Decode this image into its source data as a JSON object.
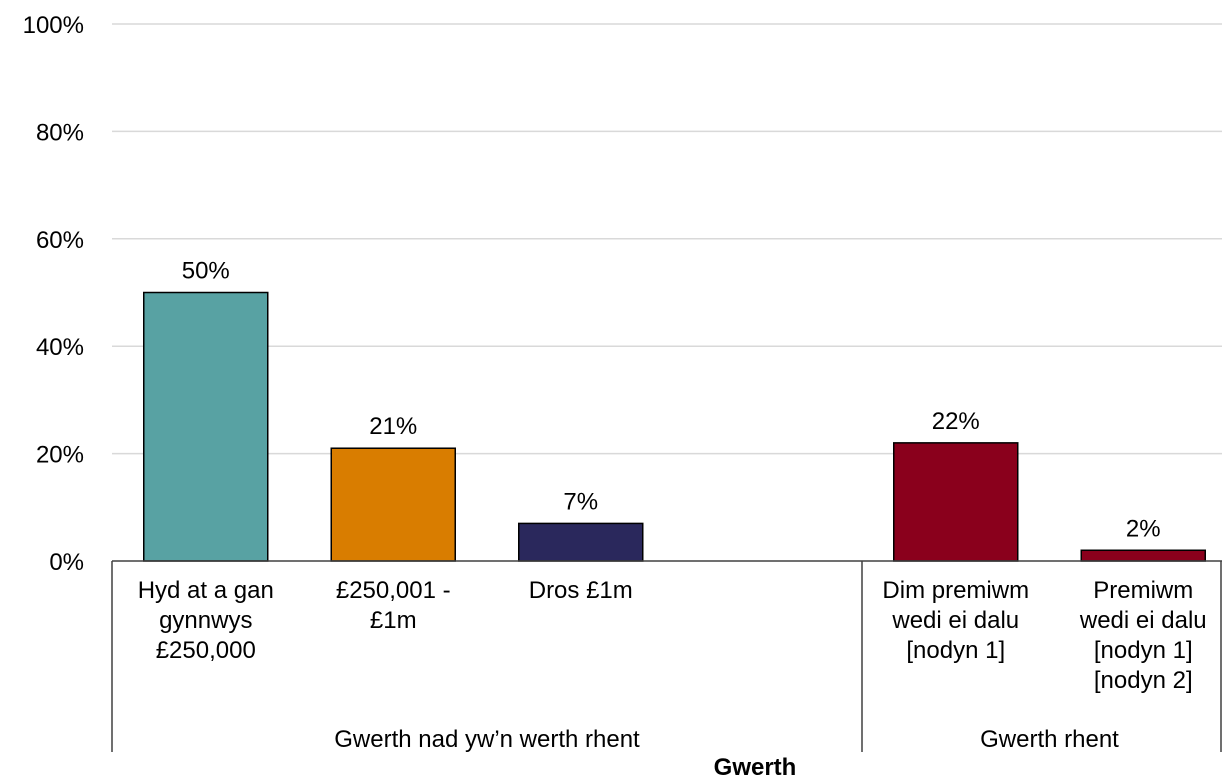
{
  "chart_data": {
    "type": "bar",
    "y_ticks": [
      "0%",
      "20%",
      "40%",
      "60%",
      "80%",
      "100%"
    ],
    "ylim": [
      0,
      100
    ],
    "grid": true,
    "xlabel": "Gwerth",
    "groups": [
      {
        "name": "Gwerth nad yw’n werth rhent",
        "categories": [
          {
            "lines": [
              "Hyd at a gan",
              "gynnwys",
              "£250,000"
            ],
            "value": 50,
            "label": "50%",
            "color": "#58a2a3"
          },
          {
            "lines": [
              "£250,001 -",
              "£1m"
            ],
            "value": 21,
            "label": "21%",
            "color": "#d97d00"
          },
          {
            "lines": [
              "Dros £1m"
            ],
            "value": 7,
            "label": "7%",
            "color": "#2a285c"
          },
          {
            "lines": [],
            "value": null,
            "label": "",
            "color": ""
          }
        ]
      },
      {
        "name": "Gwerth rhent",
        "categories": [
          {
            "lines": [
              "Dim premiwm",
              "wedi ei dalu",
              "[nodyn 1]"
            ],
            "value": 22,
            "label": "22%",
            "color": "#8a001c"
          },
          {
            "lines": [
              "Premiwm",
              "wedi ei dalu",
              "[nodyn 1]",
              "[nodyn 2]"
            ],
            "value": 2,
            "label": "2%",
            "color": "#8a001c"
          }
        ]
      }
    ]
  }
}
